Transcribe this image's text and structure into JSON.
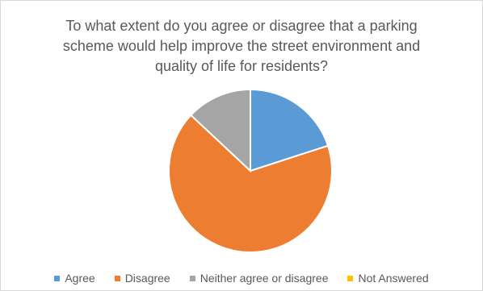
{
  "chart_data": {
    "type": "pie",
    "title": "To what extent do you agree or disagree that a parking scheme would help improve the street environment and quality of life for residents?",
    "categories": [
      "Agree",
      "Disagree",
      "Neither agree or disagree",
      "Not Answered"
    ],
    "values": [
      20,
      67,
      13,
      0
    ],
    "unit": "percent (estimated share of responses)",
    "colors": [
      "#5B9BD5",
      "#ED7D31",
      "#A5A5A5",
      "#FFC000"
    ],
    "start_angle": "12 o'clock, clockwise",
    "legend_position": "bottom"
  }
}
